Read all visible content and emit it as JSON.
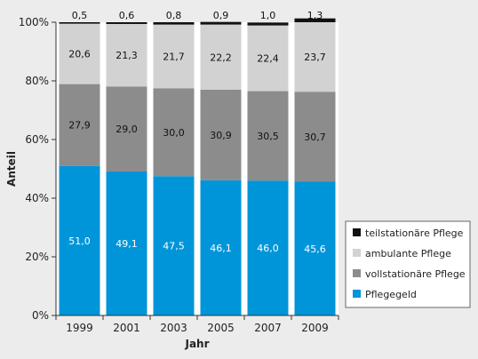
{
  "chart_data": {
    "type": "bar",
    "stacked": true,
    "categories": [
      "1999",
      "2001",
      "2003",
      "2005",
      "2007",
      "2009"
    ],
    "series": [
      {
        "name": "Pflegegeld",
        "color": "#0095d9",
        "label_color": "#ffffff",
        "values": [
          51.0,
          49.1,
          47.5,
          46.1,
          46.0,
          45.6
        ],
        "labels": [
          "51,0",
          "49,1",
          "47,5",
          "46,1",
          "46,0",
          "45,6"
        ]
      },
      {
        "name": "vollstationäre Pflege",
        "color": "#8c8c8c",
        "label_color": "#111111",
        "values": [
          27.9,
          29.0,
          30.0,
          30.9,
          30.5,
          30.7
        ],
        "labels": [
          "27,9",
          "29,0",
          "30,0",
          "30,9",
          "30,5",
          "30,7"
        ]
      },
      {
        "name": "ambulante Pflege",
        "color": "#d2d2d2",
        "label_color": "#111111",
        "values": [
          20.6,
          21.3,
          21.7,
          22.2,
          22.4,
          23.7
        ],
        "labels": [
          "20,6",
          "21,3",
          "21,7",
          "22,2",
          "22,4",
          "23,7"
        ]
      },
      {
        "name": "teilstationäre Pflege",
        "color": "#111111",
        "label_color": "#111111",
        "values": [
          0.5,
          0.6,
          0.8,
          0.9,
          1.0,
          1.3
        ],
        "labels": [
          "0,5",
          "0,6",
          "0,8",
          "0,9",
          "1,0",
          "1,3"
        ]
      }
    ],
    "legend_order": [
      "teilstationäre Pflege",
      "ambulante Pflege",
      "vollstationäre Pflege",
      "Pflegegeld"
    ],
    "xlabel": "Jahr",
    "ylabel": "Anteil",
    "ylim": [
      0,
      100
    ],
    "yticks": [
      0,
      20,
      40,
      60,
      80,
      100
    ],
    "ytick_labels": [
      "0%",
      "20%",
      "40%",
      "60%",
      "80%",
      "100%"
    ],
    "grid": false,
    "legend_position": "right"
  }
}
